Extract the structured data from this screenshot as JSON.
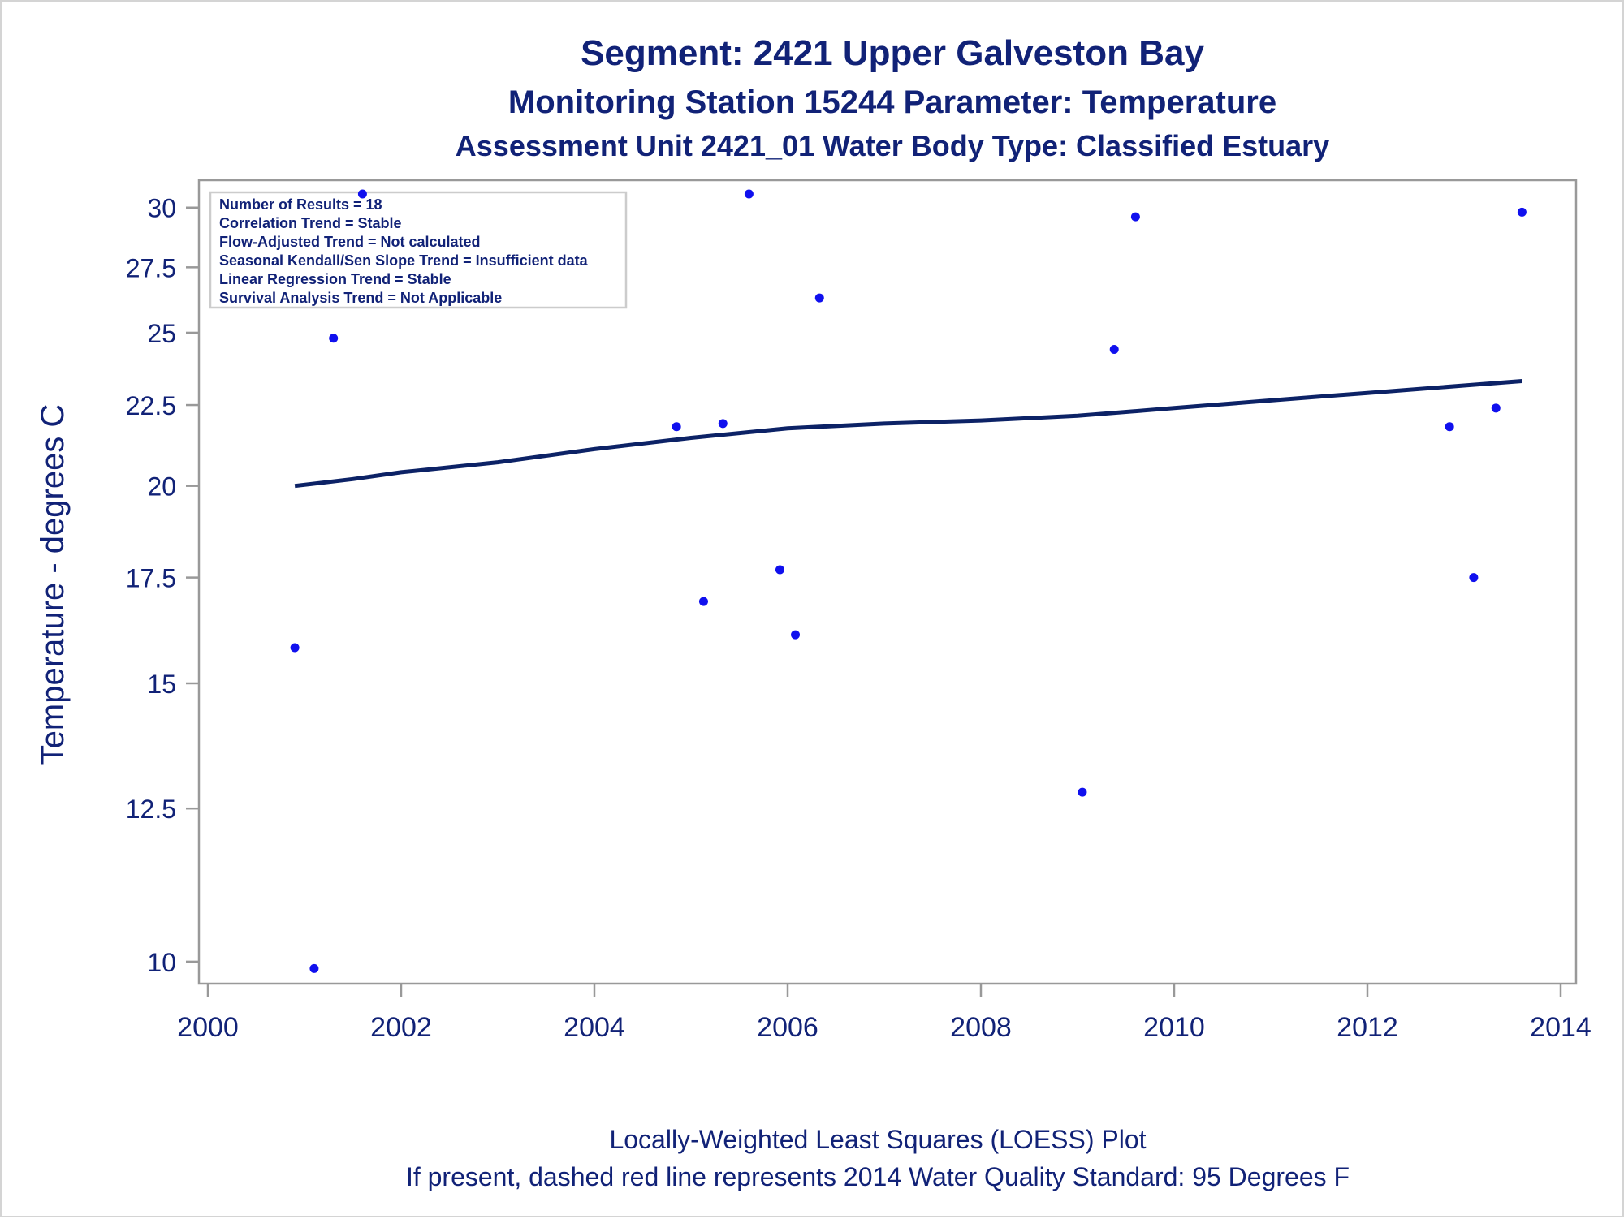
{
  "colors": {
    "text": "#112277",
    "point": "#1010ee",
    "line": "#0c2266",
    "frame": "#999999",
    "stats_border": "#cccccc"
  },
  "titles": {
    "line1": "Segment: 2421  Upper Galveston Bay",
    "line2": "Monitoring Station 15244 Parameter: Temperature",
    "line3": "Assessment Unit 2421_01   Water Body Type: Classified Estuary"
  },
  "footnotes": {
    "line1": "Locally-Weighted Least Squares (LOESS) Plot",
    "line2": "If present, dashed red line represents 2014 Water Quality Standard: 95   Degrees F"
  },
  "stats_box": {
    "lines": [
      "Number of Results = 18",
      "Correlation Trend = Stable",
      "Flow-Adjusted Trend = Not calculated",
      "Seasonal Kendall/Sen Slope Trend = Insufficient data",
      "Linear Regression Trend = Stable",
      "Survival Analysis Trend = Not Applicable"
    ]
  },
  "chart_data": {
    "type": "scatter",
    "title": "Segment: 2421  Upper Galveston Bay",
    "xlabel": "",
    "ylabel": "Temperature - degrees C",
    "x_ticks": [
      "2000",
      "2002",
      "2004",
      "2006",
      "2008",
      "2010",
      "2012",
      "2014"
    ],
    "y_ticks": [
      "10",
      "12.5",
      "15",
      "17.5",
      "20",
      "22.5",
      "25",
      "27.5",
      "30"
    ],
    "xlim": [
      2000,
      2014
    ],
    "ylim": [
      9.8,
      30.6
    ],
    "y_scale": "log",
    "grid": false,
    "legend": "none",
    "series": [
      {
        "type": "scatter",
        "x": [
          2000.9,
          2001.1,
          2001.3,
          2001.6,
          2004.85,
          2005.13,
          2005.33,
          2005.6,
          2005.92,
          2006.08,
          2006.33,
          2009.05,
          2009.38,
          2009.6,
          2012.85,
          2013.1,
          2013.33,
          2013.6
        ],
        "y": [
          15.8,
          9.9,
          24.8,
          30.6,
          21.8,
          16.9,
          21.9,
          30.6,
          17.7,
          16.1,
          26.3,
          12.8,
          24.4,
          29.6,
          21.8,
          17.5,
          22.4,
          29.8
        ]
      },
      {
        "type": "line",
        "x": [
          2000.9,
          2001.5,
          2002.0,
          2003.0,
          2004.0,
          2005.0,
          2006.0,
          2007.0,
          2008.0,
          2009.0,
          2010.0,
          2011.0,
          2012.0,
          2013.0,
          2013.6
        ],
        "y": [
          20.0,
          20.2,
          20.4,
          20.7,
          21.1,
          21.45,
          21.75,
          21.9,
          22.0,
          22.15,
          22.4,
          22.65,
          22.9,
          23.15,
          23.3
        ]
      }
    ]
  }
}
